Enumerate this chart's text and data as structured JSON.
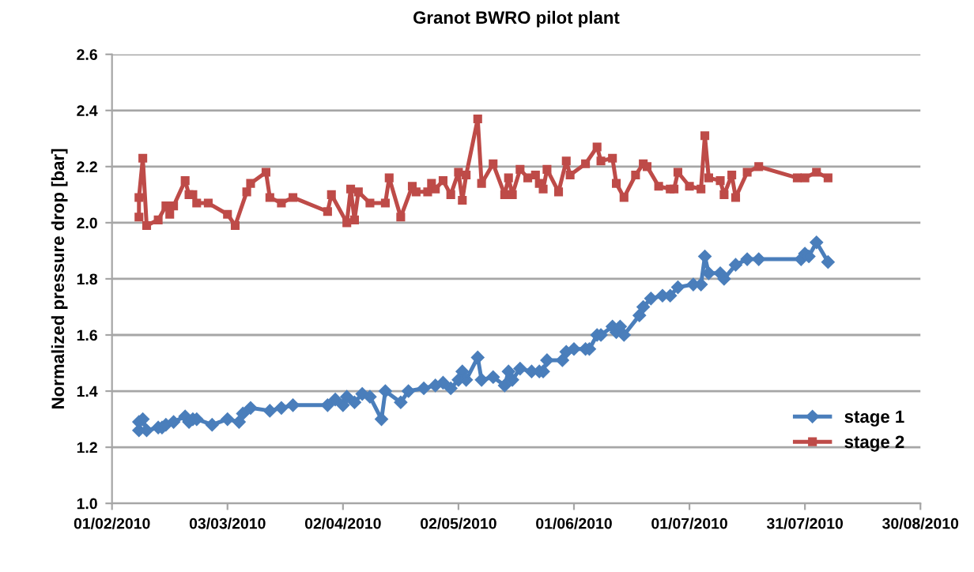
{
  "chart_data": {
    "type": "line",
    "title": "Granot BWRO pilot plant",
    "ylabel": "Normalized pressure drop [bar]",
    "xlim": [
      "2010-02-01",
      "2010-08-30"
    ],
    "xticks": [
      {
        "value": "2010-02-01",
        "label": "01/02/2010"
      },
      {
        "value": "2010-03-03",
        "label": "03/03/2010"
      },
      {
        "value": "2010-04-02",
        "label": "02/04/2010"
      },
      {
        "value": "2010-05-02",
        "label": "02/05/2010"
      },
      {
        "value": "2010-06-01",
        "label": "01/06/2010"
      },
      {
        "value": "2010-07-01",
        "label": "01/07/2010"
      },
      {
        "value": "2010-07-31",
        "label": "31/07/2010"
      },
      {
        "value": "2010-08-30",
        "label": "30/08/2010"
      }
    ],
    "ylim": [
      1.0,
      2.6
    ],
    "yticks": [
      {
        "value": 1.0,
        "label": "1.0"
      },
      {
        "value": 1.2,
        "label": "1.2"
      },
      {
        "value": 1.4,
        "label": "1.4"
      },
      {
        "value": 1.6,
        "label": "1.6"
      },
      {
        "value": 1.8,
        "label": "1.8"
      },
      {
        "value": 2.0,
        "label": "2.0"
      },
      {
        "value": 2.2,
        "label": "2.2"
      },
      {
        "value": 2.4,
        "label": "2.4"
      },
      {
        "value": 2.6,
        "label": "2.6"
      }
    ],
    "grid": "y",
    "legend": "bottom right",
    "line_style": "solid",
    "series": [
      {
        "name": "stage 1",
        "color": "#4a7ebb",
        "marker": "diamond",
        "x": [
          "2010-02-08",
          "2010-02-08",
          "2010-02-09",
          "2010-02-10",
          "2010-02-13",
          "2010-02-14",
          "2010-02-15",
          "2010-02-17",
          "2010-02-20",
          "2010-02-21",
          "2010-02-22",
          "2010-02-23",
          "2010-02-27",
          "2010-03-03",
          "2010-03-06",
          "2010-03-07",
          "2010-03-09",
          "2010-03-14",
          "2010-03-17",
          "2010-03-20",
          "2010-03-29",
          "2010-03-31",
          "2010-04-02",
          "2010-04-03",
          "2010-04-05",
          "2010-04-07",
          "2010-04-09",
          "2010-04-12",
          "2010-04-13",
          "2010-04-17",
          "2010-04-19",
          "2010-04-23",
          "2010-04-26",
          "2010-04-28",
          "2010-04-30",
          "2010-05-02",
          "2010-05-03",
          "2010-05-04",
          "2010-05-07",
          "2010-05-08",
          "2010-05-11",
          "2010-05-14",
          "2010-05-15",
          "2010-05-16",
          "2010-05-18",
          "2010-05-21",
          "2010-05-23",
          "2010-05-24",
          "2010-05-25",
          "2010-05-29",
          "2010-05-30",
          "2010-06-01",
          "2010-06-04",
          "2010-06-05",
          "2010-06-07",
          "2010-06-08",
          "2010-06-11",
          "2010-06-12",
          "2010-06-13",
          "2010-06-14",
          "2010-06-18",
          "2010-06-19",
          "2010-06-21",
          "2010-06-24",
          "2010-06-26",
          "2010-06-28",
          "2010-07-02",
          "2010-07-04",
          "2010-07-05",
          "2010-07-06",
          "2010-07-09",
          "2010-07-10",
          "2010-07-13",
          "2010-07-16",
          "2010-07-19",
          "2010-07-30",
          "2010-07-31",
          "2010-08-01",
          "2010-08-03",
          "2010-08-06"
        ],
        "values": [
          1.26,
          1.29,
          1.3,
          1.26,
          1.27,
          1.27,
          1.28,
          1.29,
          1.31,
          1.29,
          1.3,
          1.3,
          1.28,
          1.3,
          1.29,
          1.32,
          1.34,
          1.33,
          1.34,
          1.35,
          1.35,
          1.37,
          1.35,
          1.38,
          1.36,
          1.39,
          1.38,
          1.3,
          1.4,
          1.36,
          1.4,
          1.41,
          1.42,
          1.43,
          1.41,
          1.44,
          1.47,
          1.44,
          1.52,
          1.44,
          1.45,
          1.42,
          1.47,
          1.44,
          1.48,
          1.47,
          1.47,
          1.47,
          1.51,
          1.51,
          1.54,
          1.55,
          1.55,
          1.55,
          1.6,
          1.6,
          1.63,
          1.61,
          1.63,
          1.6,
          1.67,
          1.7,
          1.73,
          1.74,
          1.74,
          1.77,
          1.78,
          1.78,
          1.88,
          1.82,
          1.82,
          1.8,
          1.85,
          1.87,
          1.87,
          1.87,
          1.89,
          1.88,
          1.93,
          1.86
        ]
      },
      {
        "name": "stage 2",
        "color": "#be4b48",
        "marker": "square",
        "x": [
          "2010-02-08",
          "2010-02-08",
          "2010-02-09",
          "2010-02-10",
          "2010-02-13",
          "2010-02-15",
          "2010-02-16",
          "2010-02-17",
          "2010-02-20",
          "2010-02-21",
          "2010-02-22",
          "2010-02-23",
          "2010-02-26",
          "2010-03-03",
          "2010-03-05",
          "2010-03-08",
          "2010-03-09",
          "2010-03-13",
          "2010-03-14",
          "2010-03-17",
          "2010-03-20",
          "2010-03-29",
          "2010-03-30",
          "2010-04-03",
          "2010-04-04",
          "2010-04-05",
          "2010-04-06",
          "2010-04-09",
          "2010-04-13",
          "2010-04-14",
          "2010-04-17",
          "2010-04-20",
          "2010-04-21",
          "2010-04-24",
          "2010-04-25",
          "2010-04-26",
          "2010-04-28",
          "2010-04-30",
          "2010-05-02",
          "2010-05-03",
          "2010-05-04",
          "2010-05-07",
          "2010-05-08",
          "2010-05-11",
          "2010-05-14",
          "2010-05-15",
          "2010-05-16",
          "2010-05-18",
          "2010-05-20",
          "2010-05-22",
          "2010-05-23",
          "2010-05-24",
          "2010-05-25",
          "2010-05-28",
          "2010-05-30",
          "2010-05-31",
          "2010-06-04",
          "2010-06-07",
          "2010-06-08",
          "2010-06-11",
          "2010-06-12",
          "2010-06-14",
          "2010-06-17",
          "2010-06-19",
          "2010-06-20",
          "2010-06-23",
          "2010-06-26",
          "2010-06-27",
          "2010-06-28",
          "2010-07-01",
          "2010-07-04",
          "2010-07-05",
          "2010-07-06",
          "2010-07-09",
          "2010-07-10",
          "2010-07-12",
          "2010-07-13",
          "2010-07-16",
          "2010-07-19",
          "2010-07-29",
          "2010-07-31",
          "2010-08-03",
          "2010-08-06"
        ],
        "values": [
          2.02,
          2.09,
          2.23,
          1.99,
          2.01,
          2.06,
          2.03,
          2.06,
          2.15,
          2.1,
          2.1,
          2.07,
          2.07,
          2.03,
          1.99,
          2.11,
          2.14,
          2.18,
          2.09,
          2.07,
          2.09,
          2.04,
          2.1,
          2.0,
          2.12,
          2.01,
          2.11,
          2.07,
          2.07,
          2.16,
          2.02,
          2.13,
          2.11,
          2.11,
          2.14,
          2.12,
          2.15,
          2.1,
          2.18,
          2.08,
          2.17,
          2.37,
          2.14,
          2.21,
          2.1,
          2.16,
          2.1,
          2.19,
          2.16,
          2.17,
          2.14,
          2.12,
          2.19,
          2.11,
          2.22,
          2.17,
          2.21,
          2.27,
          2.22,
          2.23,
          2.14,
          2.09,
          2.17,
          2.21,
          2.2,
          2.13,
          2.12,
          2.12,
          2.18,
          2.13,
          2.12,
          2.31,
          2.16,
          2.15,
          2.1,
          2.17,
          2.09,
          2.18,
          2.2,
          2.16,
          2.16,
          2.18,
          2.16
        ]
      }
    ]
  }
}
